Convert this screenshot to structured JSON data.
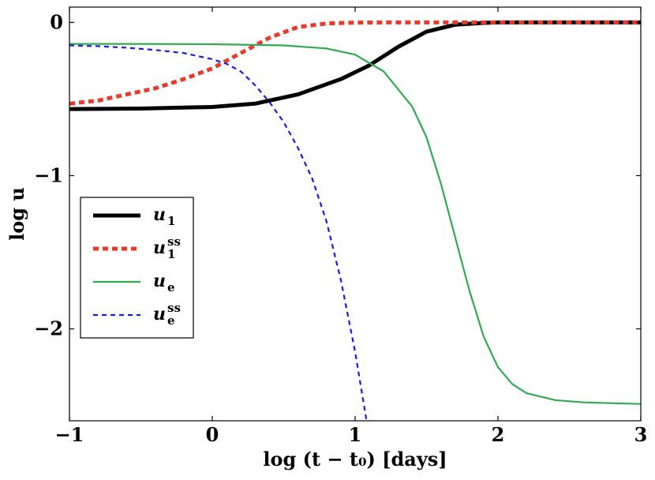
{
  "chart_data": {
    "type": "line",
    "title": "",
    "xlabel": "log (t − t₀) [days]",
    "ylabel": "log u",
    "xlim": [
      -1,
      3
    ],
    "ylim": [
      -2.6,
      0.1
    ],
    "x_ticks": [
      -1,
      0,
      1,
      2,
      3
    ],
    "x_tick_labels": [
      "−1",
      "0",
      "1",
      "2",
      "3"
    ],
    "y_ticks": [
      0,
      -1,
      -2
    ],
    "y_tick_labels": [
      "0",
      "−1",
      "−2"
    ],
    "grid": false,
    "legend_position": "center-left",
    "series": [
      {
        "name": "u1",
        "label_main": "u",
        "label_sub": "1",
        "label_sup": "",
        "color": "#000000",
        "style": "solid",
        "width": "thick",
        "x": [
          -1.0,
          -0.5,
          0.0,
          0.3,
          0.6,
          0.9,
          1.1,
          1.3,
          1.5,
          1.7,
          1.9,
          2.0,
          2.5,
          3.0
        ],
        "y": [
          -0.565,
          -0.562,
          -0.552,
          -0.53,
          -0.47,
          -0.37,
          -0.28,
          -0.16,
          -0.06,
          -0.015,
          -0.003,
          0.0,
          0.0,
          0.0
        ]
      },
      {
        "name": "u1ss",
        "label_main": "u",
        "label_sub": "1",
        "label_sup": "ss",
        "color": "#e8392a",
        "style": "dotted",
        "width": "thick",
        "x": [
          -1.0,
          -0.8,
          -0.6,
          -0.4,
          -0.2,
          0.0,
          0.2,
          0.4,
          0.6,
          0.8,
          1.0,
          1.2,
          2.0,
          3.0
        ],
        "y": [
          -0.53,
          -0.51,
          -0.47,
          -0.43,
          -0.37,
          -0.3,
          -0.2,
          -0.1,
          -0.03,
          -0.007,
          -0.001,
          0.0,
          0.0,
          0.0
        ]
      },
      {
        "name": "ue",
        "label_main": "u",
        "label_sub": "e",
        "label_sup": "",
        "color": "#34a853",
        "style": "solid",
        "width": "thin",
        "x": [
          -1.0,
          -0.5,
          0.0,
          0.5,
          0.8,
          1.0,
          1.2,
          1.4,
          1.5,
          1.6,
          1.7,
          1.8,
          1.9,
          2.0,
          2.1,
          2.2,
          2.4,
          2.6,
          3.0
        ],
        "y": [
          -0.14,
          -0.14,
          -0.142,
          -0.15,
          -0.17,
          -0.21,
          -0.32,
          -0.55,
          -0.75,
          -1.05,
          -1.4,
          -1.75,
          -2.05,
          -2.25,
          -2.36,
          -2.42,
          -2.465,
          -2.48,
          -2.49
        ]
      },
      {
        "name": "uess",
        "label_main": "u",
        "label_sub": "e",
        "label_sup": "ss",
        "color": "#1a1ae0",
        "style": "dashed",
        "width": "thin",
        "x": [
          -1.0,
          -0.8,
          -0.6,
          -0.4,
          -0.2,
          0.0,
          0.1,
          0.2,
          0.3,
          0.4,
          0.5,
          0.6,
          0.7,
          0.8,
          0.9,
          1.0,
          1.08
        ],
        "y": [
          -0.15,
          -0.155,
          -0.165,
          -0.18,
          -0.2,
          -0.24,
          -0.27,
          -0.32,
          -0.41,
          -0.52,
          -0.65,
          -0.82,
          -1.02,
          -1.3,
          -1.68,
          -2.15,
          -2.6
        ]
      }
    ]
  }
}
